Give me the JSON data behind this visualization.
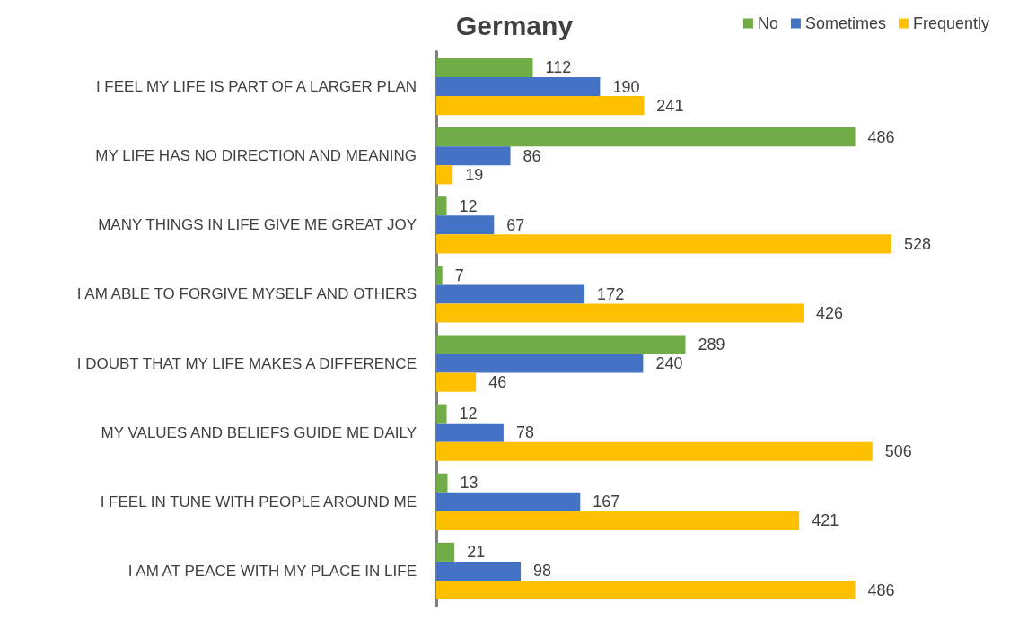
{
  "chart_data": {
    "type": "bar",
    "orientation": "horizontal",
    "title": "Germany",
    "categories": [
      "I FEEL MY LIFE IS PART OF A LARGER PLAN",
      "MY LIFE HAS NO DIRECTION AND MEANING",
      "MANY THINGS IN LIFE GIVE ME GREAT JOY",
      "I AM ABLE TO FORGIVE MYSELF AND OTHERS",
      "I DOUBT THAT MY LIFE MAKES A DIFFERENCE",
      "MY VALUES AND BELIEFS GUIDE ME DAILY",
      "I FEEL IN TUNE WITH PEOPLE AROUND ME",
      "I AM AT PEACE WITH MY PLACE IN LIFE"
    ],
    "series": [
      {
        "name": "No",
        "color": "#70ad47",
        "values": [
          112,
          486,
          12,
          7,
          289,
          12,
          13,
          21
        ]
      },
      {
        "name": "Sometimes",
        "color": "#4472c4",
        "values": [
          190,
          86,
          67,
          172,
          240,
          78,
          167,
          98
        ]
      },
      {
        "name": "Frequently",
        "color": "#ffc000",
        "values": [
          241,
          19,
          528,
          426,
          46,
          506,
          421,
          486
        ]
      }
    ],
    "data_labels": true,
    "legend": "top right",
    "tick_labels": "y"
  }
}
